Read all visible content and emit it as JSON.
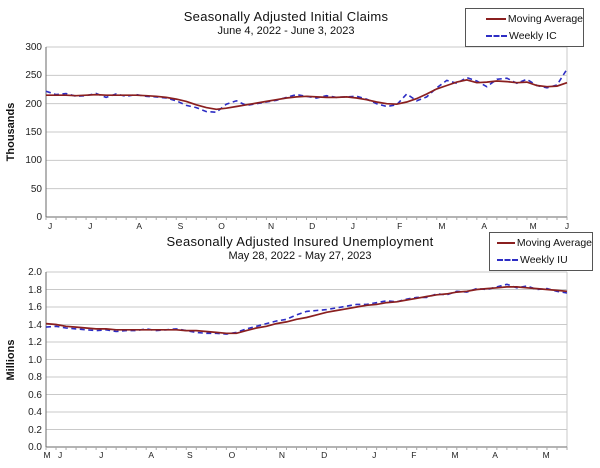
{
  "colors": {
    "grid": "#c9c9c9",
    "axis": "#6a6a6a",
    "week_tick": "#a8a8a8",
    "text": "#111111",
    "moving_average": "#8a1f1f",
    "weekly": "#2d2dc4"
  },
  "chart_data": [
    {
      "type": "line",
      "title": "Seasonally Adjusted Initial Claims",
      "subtitle": "June 4, 2022 - June 3, 2023",
      "ylabel": "Thousands",
      "ylim": [
        0,
        300
      ],
      "ytick_values": [
        0,
        50,
        100,
        150,
        200,
        250,
        300
      ],
      "ytick_labels": [
        "0",
        "50",
        "100",
        "150",
        "200",
        "250",
        "300"
      ],
      "grid": true,
      "legend_position": "top-right",
      "xticks": [
        {
          "label": "J",
          "pos": 0.008
        },
        {
          "label": "J",
          "pos": 0.085
        },
        {
          "label": "A",
          "pos": 0.179
        },
        {
          "label": "S",
          "pos": 0.258
        },
        {
          "label": "O",
          "pos": 0.337
        },
        {
          "label": "N",
          "pos": 0.432
        },
        {
          "label": "D",
          "pos": 0.511
        },
        {
          "label": "J",
          "pos": 0.589
        },
        {
          "label": "F",
          "pos": 0.679
        },
        {
          "label": "M",
          "pos": 0.76
        },
        {
          "label": "A",
          "pos": 0.841
        },
        {
          "label": "M",
          "pos": 0.935
        },
        {
          "label": "J",
          "pos": 1.0
        }
      ],
      "series": [
        {
          "name": "Moving Average",
          "style": "solid",
          "color": "#8a1f1f",
          "values": [
            215,
            215,
            215,
            214,
            215,
            216,
            215,
            215,
            215,
            215,
            214,
            213,
            211,
            208,
            204,
            198,
            193,
            190,
            192,
            195,
            198,
            201,
            204,
            207,
            210,
            212,
            213,
            212,
            211,
            211,
            212,
            210,
            207,
            203,
            200,
            199,
            203,
            209,
            217,
            226,
            232,
            238,
            242,
            237,
            238,
            240,
            239,
            237,
            238,
            232,
            230,
            231,
            237
          ]
        },
        {
          "name": "Weekly IC",
          "style": "dashed",
          "color": "#2d2dc4",
          "values": [
            222,
            216,
            218,
            213,
            214,
            218,
            211,
            217,
            213,
            216,
            213,
            212,
            210,
            205,
            197,
            193,
            186,
            185,
            199,
            205,
            197,
            200,
            203,
            206,
            211,
            216,
            213,
            210,
            214,
            211,
            212,
            213,
            208,
            200,
            195,
            198,
            217,
            205,
            212,
            228,
            241,
            236,
            246,
            240,
            230,
            243,
            245,
            236,
            243,
            232,
            228,
            233,
            261
          ]
        }
      ]
    },
    {
      "type": "line",
      "title": "Seasonally Adjusted Insured Unemployment",
      "subtitle": "May 28, 2022 - May 27, 2023",
      "ylabel": "Millions",
      "ylim": [
        0,
        2.0
      ],
      "ytick_values": [
        0,
        0.2,
        0.4,
        0.6,
        0.8,
        1.0,
        1.2,
        1.4,
        1.6,
        1.8,
        2.0
      ],
      "ytick_labels": [
        "0.0",
        "0.2",
        "0.4",
        "0.6",
        "0.8",
        "1.0",
        "1.2",
        "1.4",
        "1.6",
        "1.8",
        "2.0"
      ],
      "grid": true,
      "legend_position": "top-right",
      "xticks": [
        {
          "label": "M",
          "pos": 0.002
        },
        {
          "label": "J",
          "pos": 0.027
        },
        {
          "label": "J",
          "pos": 0.106
        },
        {
          "label": "A",
          "pos": 0.202
        },
        {
          "label": "S",
          "pos": 0.276
        },
        {
          "label": "O",
          "pos": 0.357
        },
        {
          "label": "N",
          "pos": 0.453
        },
        {
          "label": "D",
          "pos": 0.534
        },
        {
          "label": "J",
          "pos": 0.63
        },
        {
          "label": "F",
          "pos": 0.706
        },
        {
          "label": "M",
          "pos": 0.785
        },
        {
          "label": "A",
          "pos": 0.862
        },
        {
          "label": "M",
          "pos": 0.96
        }
      ],
      "series": [
        {
          "name": "Moving Average",
          "style": "solid",
          "color": "#8a1f1f",
          "values": [
            1.41,
            1.4,
            1.38,
            1.37,
            1.36,
            1.35,
            1.35,
            1.34,
            1.34,
            1.34,
            1.34,
            1.34,
            1.34,
            1.34,
            1.33,
            1.33,
            1.32,
            1.31,
            1.3,
            1.3,
            1.33,
            1.36,
            1.38,
            1.41,
            1.43,
            1.46,
            1.48,
            1.51,
            1.54,
            1.56,
            1.58,
            1.6,
            1.62,
            1.63,
            1.65,
            1.66,
            1.68,
            1.7,
            1.72,
            1.74,
            1.75,
            1.77,
            1.78,
            1.8,
            1.81,
            1.82,
            1.83,
            1.83,
            1.82,
            1.81,
            1.8,
            1.79,
            1.78
          ]
        },
        {
          "name": "Weekly IU",
          "style": "dashed",
          "color": "#2d2dc4",
          "values": [
            1.37,
            1.38,
            1.36,
            1.35,
            1.34,
            1.33,
            1.34,
            1.32,
            1.33,
            1.33,
            1.35,
            1.33,
            1.34,
            1.35,
            1.33,
            1.31,
            1.3,
            1.3,
            1.29,
            1.31,
            1.35,
            1.38,
            1.41,
            1.44,
            1.46,
            1.51,
            1.55,
            1.56,
            1.57,
            1.59,
            1.61,
            1.63,
            1.63,
            1.65,
            1.67,
            1.66,
            1.69,
            1.71,
            1.71,
            1.75,
            1.74,
            1.78,
            1.77,
            1.81,
            1.8,
            1.83,
            1.86,
            1.82,
            1.84,
            1.8,
            1.81,
            1.78,
            1.76
          ]
        }
      ]
    }
  ]
}
